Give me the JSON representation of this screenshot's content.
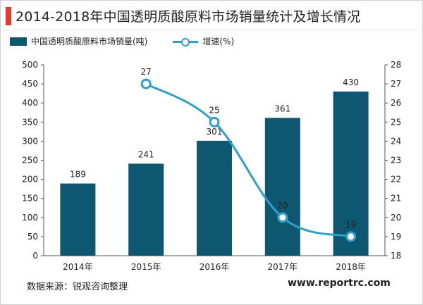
{
  "header": {
    "title": "2014-2018年中国透明质酸原料市场销量统计及增长情况"
  },
  "legend": {
    "bar_label": "中国透明质酸原料市场销量(吨)",
    "line_label": "增速(%)"
  },
  "footer": {
    "source": "数据来源：锐观咨询整理",
    "website": "www.reportrc.com"
  },
  "colors": {
    "bar": "#0d5770",
    "line": "#2ea0cc",
    "accent": "#e8392c"
  },
  "chart_data": {
    "type": "bar",
    "categories": [
      "2014年",
      "2015年",
      "2016年",
      "2017年",
      "2018年"
    ],
    "series": [
      {
        "name": "中国透明质酸原料市场销量(吨)",
        "type": "bar",
        "axis": "left",
        "values": [
          189,
          241,
          301,
          361,
          430
        ]
      },
      {
        "name": "增速(%)",
        "type": "line",
        "axis": "right",
        "values": [
          null,
          27,
          25,
          20,
          19
        ]
      }
    ],
    "ylim_left": [
      0,
      500
    ],
    "yticks_left": [
      0,
      50,
      100,
      150,
      200,
      250,
      300,
      350,
      400,
      450,
      500
    ],
    "ylim_right": [
      18,
      28
    ],
    "yticks_right": [
      18,
      19,
      20,
      21,
      22,
      23,
      24,
      25,
      26,
      27,
      28
    ],
    "grid": false,
    "legend_position": "top-left"
  }
}
